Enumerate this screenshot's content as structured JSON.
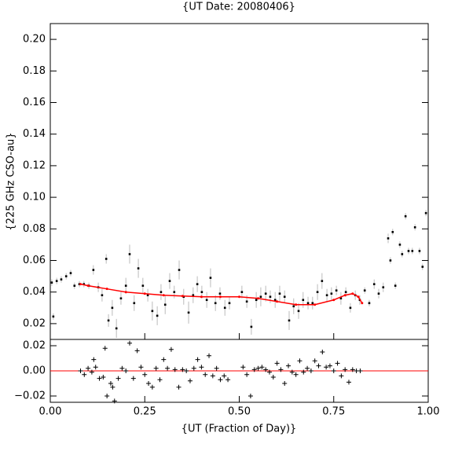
{
  "chart_data": [
    {
      "type": "scatter",
      "title": "{UT Date: 20080406}",
      "ylabel": "{225 GHz CSO-au}",
      "xlim": [
        0,
        1
      ],
      "ylim": [
        0.01,
        0.21
      ],
      "yticks": [
        0.02,
        0.04,
        0.06,
        0.08,
        {
          "value": 0.1,
          "label": "0.10"
        },
        0.12,
        0.14,
        0.16,
        0.18,
        {
          "value": 0.2,
          "label": "0.20"
        }
      ],
      "color": "#000000",
      "error_color": "#bbbbbb",
      "x": [
        0.004,
        0.008,
        0.017,
        0.029,
        0.042,
        0.054,
        0.064,
        0.077,
        0.089,
        0.102,
        0.114,
        0.127,
        0.137,
        0.148,
        0.154,
        0.164,
        0.175,
        0.187,
        0.2,
        0.21,
        0.222,
        0.233,
        0.245,
        0.258,
        0.27,
        0.283,
        0.293,
        0.304,
        0.316,
        0.328,
        0.341,
        0.353,
        0.366,
        0.378,
        0.389,
        0.401,
        0.414,
        0.424,
        0.437,
        0.449,
        0.462,
        0.474,
        0.507,
        0.52,
        0.532,
        0.545,
        0.557,
        0.57,
        0.582,
        0.595,
        0.607,
        0.62,
        0.632,
        0.644,
        0.657,
        0.669,
        0.682,
        0.694,
        0.707,
        0.719,
        0.732,
        0.744,
        0.757,
        0.769,
        0.782,
        0.794,
        0.807,
        0.819,
        0.832,
        0.844,
        0.857,
        0.869,
        0.881,
        0.894,
        0.9,
        0.906,
        0.913,
        0.925,
        0.931,
        0.94,
        0.948,
        0.958,
        0.965,
        0.977,
        0.985,
        0.994
      ],
      "values": [
        0.046,
        0.0245,
        0.047,
        0.048,
        0.05,
        0.052,
        0.044,
        0.045,
        0.045,
        0.044,
        0.054,
        0.043,
        0.038,
        0.061,
        0.022,
        0.03,
        0.017,
        0.036,
        0.044,
        0.064,
        0.033,
        0.055,
        0.044,
        0.038,
        0.028,
        0.025,
        0.04,
        0.032,
        0.047,
        0.04,
        0.054,
        0.037,
        0.027,
        0.038,
        0.045,
        0.04,
        0.035,
        0.049,
        0.033,
        0.039,
        0.03,
        0.033,
        0.04,
        0.034,
        0.018,
        0.035,
        0.037,
        0.039,
        0.037,
        0.035,
        0.039,
        0.037,
        0.022,
        0.031,
        0.028,
        0.035,
        0.033,
        0.033,
        0.04,
        0.047,
        0.038,
        0.039,
        0.041,
        0.036,
        0.04,
        0.03,
        0.038,
        0.035,
        0.041,
        0.033,
        0.045,
        0.039,
        0.043,
        0.074,
        0.06,
        0.078,
        0.044,
        0.07,
        0.064,
        0.088,
        0.066,
        0.066,
        0.081,
        0.066,
        0.056,
        0.09
      ],
      "errors": [
        0.002,
        0.002,
        0.002,
        0.002,
        0.002,
        0.002,
        0.002,
        0.002,
        0.002,
        0.002,
        0.003,
        0.003,
        0.004,
        0.003,
        0.004,
        0.005,
        0.006,
        0.004,
        0.005,
        0.006,
        0.005,
        0.006,
        0.005,
        0.004,
        0.006,
        0.006,
        0.005,
        0.006,
        0.005,
        0.004,
        0.006,
        0.005,
        0.007,
        0.005,
        0.005,
        0.004,
        0.005,
        0.006,
        0.005,
        0.004,
        0.005,
        0.004,
        0.004,
        0.004,
        0.005,
        0.005,
        0.006,
        0.005,
        0.004,
        0.005,
        0.005,
        0.004,
        0.006,
        0.005,
        0.005,
        0.005,
        0.004,
        0.004,
        0.005,
        0.005,
        0.004,
        0.004,
        0.003,
        0.004,
        0.003,
        0.003,
        0.003,
        0.003,
        0.002,
        0.002,
        0.003,
        0.003,
        0.003,
        0.003,
        0.002,
        0.002,
        0.002,
        0.002,
        0.002,
        0.002,
        0.002,
        0.002,
        0.002,
        0.002,
        0.002,
        0.002
      ],
      "fit_color": "#ff0000",
      "fit_x": [
        0.08,
        0.1,
        0.15,
        0.2,
        0.25,
        0.3,
        0.35,
        0.4,
        0.45,
        0.5,
        0.55,
        0.6,
        0.65,
        0.7,
        0.75,
        0.78,
        0.8,
        0.815,
        0.825
      ],
      "fit_values": [
        0.045,
        0.044,
        0.042,
        0.04,
        0.039,
        0.038,
        0.0375,
        0.037,
        0.037,
        0.037,
        0.036,
        0.034,
        0.032,
        0.032,
        0.035,
        0.038,
        0.039,
        0.037,
        0.033
      ]
    },
    {
      "type": "scatter",
      "xlabel": "{UT (Fraction of Day)}",
      "xlim": [
        0,
        1
      ],
      "ylim": [
        -0.025,
        0.025
      ],
      "xticks": [
        {
          "value": 0,
          "label": "0.00"
        },
        0.25,
        {
          "value": 0.5,
          "label": "0.50"
        },
        0.75,
        {
          "value": 1,
          "label": "1.00"
        }
      ],
      "yticks": [
        {
          "value": -0.02,
          "label": "−0.02"
        },
        {
          "value": 0,
          "label": "0.00"
        },
        0.02
      ],
      "color": "#000000",
      "zero_line_color": "#ff0000",
      "x": [
        0.08,
        0.09,
        0.1,
        0.11,
        0.115,
        0.12,
        0.13,
        0.14,
        0.145,
        0.15,
        0.16,
        0.165,
        0.17,
        0.18,
        0.19,
        0.2,
        0.21,
        0.22,
        0.23,
        0.24,
        0.25,
        0.26,
        0.27,
        0.28,
        0.29,
        0.3,
        0.31,
        0.32,
        0.33,
        0.34,
        0.35,
        0.36,
        0.37,
        0.38,
        0.39,
        0.4,
        0.41,
        0.42,
        0.43,
        0.44,
        0.45,
        0.46,
        0.47,
        0.51,
        0.52,
        0.53,
        0.54,
        0.55,
        0.56,
        0.57,
        0.58,
        0.59,
        0.6,
        0.61,
        0.62,
        0.63,
        0.64,
        0.65,
        0.66,
        0.67,
        0.68,
        0.69,
        0.7,
        0.71,
        0.72,
        0.73,
        0.74,
        0.75,
        0.76,
        0.77,
        0.78,
        0.79,
        0.8,
        0.81,
        0.82
      ],
      "values": [
        0,
        -0.003,
        0.002,
        -0.001,
        0.009,
        0.003,
        -0.006,
        -0.005,
        0.018,
        -0.02,
        -0.01,
        -0.013,
        -0.024,
        -0.006,
        0.002,
        0,
        0.022,
        -0.006,
        0.016,
        0.003,
        -0.003,
        -0.01,
        -0.013,
        0.002,
        -0.007,
        0.009,
        0.002,
        0.017,
        0.001,
        -0.013,
        0.001,
        0,
        -0.008,
        0.002,
        0.009,
        0.003,
        -0.003,
        0.012,
        -0.004,
        0.002,
        -0.007,
        -0.004,
        -0.007,
        0.003,
        -0.003,
        -0.02,
        0.001,
        0.002,
        0.003,
        0.001,
        -0.001,
        -0.005,
        0.006,
        0.001,
        -0.01,
        0.004,
        -0.001,
        -0.003,
        0.008,
        -0.001,
        0.002,
        0,
        0.008,
        0.004,
        0.015,
        0.003,
        0.004,
        0,
        0.006,
        -0.004,
        0.001,
        -0.009,
        0.001,
        0,
        0
      ]
    }
  ]
}
